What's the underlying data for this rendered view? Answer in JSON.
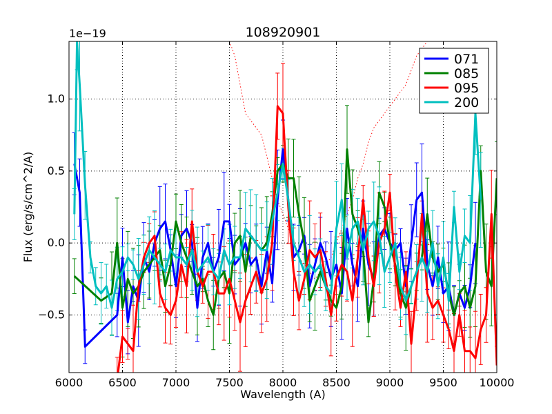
{
  "chart_data": {
    "type": "line",
    "title": "108920901",
    "xlabel": "Wavelength (A)",
    "ylabel": "Flux (erg/s/cm^2/A)",
    "scale_label": "1e−19",
    "xlim": [
      6000,
      10000
    ],
    "ylim": [
      -0.9,
      1.4
    ],
    "xticks": [
      6000,
      6500,
      7000,
      7500,
      8000,
      8500,
      9000,
      9500,
      10000
    ],
    "xtick_labels": [
      "6000",
      "6500",
      "7000",
      "7500",
      "8000",
      "8500",
      "9000",
      "9500",
      "10000"
    ],
    "yticks": [
      -0.5,
      0.0,
      0.5,
      1.0
    ],
    "ytick_labels": [
      "−0.5",
      "0.0",
      "0.5",
      "1.0"
    ],
    "grid": true,
    "legend_position": "top-right",
    "colors": {
      "frame": "#000000",
      "grid": "#000000",
      "dotted": "#ff0000"
    },
    "series": [
      {
        "name": "071",
        "color": "#0000ff",
        "x": [
          6050,
          6100,
          6150,
          6450,
          6500,
          6550,
          6600,
          6650,
          6700,
          6750,
          6800,
          6850,
          6900,
          6950,
          7000,
          7050,
          7100,
          7150,
          7200,
          7250,
          7300,
          7350,
          7400,
          7450,
          7500,
          7550,
          7600,
          7650,
          7700,
          7750,
          7800,
          7850,
          7900,
          7950,
          8000,
          8050,
          8100,
          8150,
          8200,
          8250,
          8300,
          8350,
          8400,
          8450,
          8500,
          8550,
          8600,
          8650,
          8700,
          8750,
          8800,
          8850,
          8900,
          8950,
          9000,
          9050,
          9100,
          9150,
          9200,
          9250,
          9300,
          9350,
          9400,
          9450,
          9500,
          9550,
          9600,
          9650,
          9700,
          9750,
          9800
        ],
        "y": [
          0.55,
          0.35,
          -0.72,
          -0.5,
          -0.1,
          -0.55,
          -0.3,
          -0.4,
          -0.1,
          -0.2,
          0.0,
          0.1,
          0.15,
          -0.05,
          -0.3,
          0.05,
          0.1,
          0.0,
          -0.45,
          -0.1,
          0.0,
          -0.2,
          -0.1,
          0.15,
          0.15,
          -0.15,
          -0.1,
          0.0,
          -0.15,
          -0.1,
          -0.3,
          -0.05,
          -0.28,
          0.3,
          0.65,
          0.3,
          -0.1,
          -0.05,
          0.05,
          -0.3,
          -0.15,
          0.0,
          -0.1,
          -0.25,
          -0.15,
          -0.35,
          0.1,
          -0.15,
          -0.3,
          0.1,
          -0.15,
          -0.25,
          0.05,
          0.1,
          0.0,
          -0.05,
          0.0,
          -0.3,
          0.0,
          0.3,
          0.35,
          -0.15,
          -0.3,
          -0.1,
          -0.35,
          -0.3,
          -0.5,
          -0.35,
          -0.45,
          -0.3,
          0.0
        ]
      },
      {
        "name": "085",
        "color": "#008000",
        "x": [
          6050,
          6300,
          6400,
          6450,
          6500,
          6550,
          6600,
          6650,
          6700,
          6750,
          6800,
          6850,
          6900,
          6950,
          7000,
          7050,
          7100,
          7150,
          7200,
          7250,
          7300,
          7350,
          7400,
          7450,
          7500,
          7550,
          7600,
          7650,
          7700,
          7750,
          7800,
          7850,
          7900,
          7950,
          8000,
          8050,
          8100,
          8150,
          8200,
          8250,
          8300,
          8350,
          8400,
          8450,
          8500,
          8550,
          8600,
          8650,
          8700,
          8750,
          8800,
          8850,
          8900,
          8950,
          9000,
          9050,
          9100,
          9150,
          9200,
          9250,
          9300,
          9350,
          9400,
          9450,
          9500,
          9550,
          9600,
          9650,
          9700,
          9750,
          9800,
          9850,
          9900,
          9950,
          10000
        ],
        "y": [
          -0.23,
          -0.4,
          -0.35,
          0.0,
          -0.45,
          -0.25,
          -0.35,
          -0.3,
          -0.2,
          -0.15,
          -0.1,
          -0.05,
          -0.3,
          -0.15,
          0.15,
          0.0,
          -0.1,
          -0.2,
          -0.3,
          -0.25,
          -0.4,
          -0.5,
          -0.25,
          -0.2,
          -0.35,
          0.0,
          0.05,
          -0.2,
          0.05,
          0.0,
          -0.05,
          0.0,
          0.2,
          0.5,
          0.55,
          0.45,
          0.45,
          0.2,
          0.0,
          -0.4,
          -0.3,
          -0.2,
          -0.3,
          -0.4,
          -0.45,
          -0.3,
          0.65,
          0.2,
          0.1,
          -0.05,
          -0.55,
          -0.25,
          0.35,
          0.25,
          0.0,
          -0.15,
          -0.35,
          -0.45,
          -0.3,
          -0.2,
          -0.1,
          0.2,
          -0.1,
          -0.2,
          -0.15,
          -0.35,
          -0.5,
          -0.35,
          -0.3,
          -0.45,
          -0.3,
          0.5,
          -0.2,
          -0.3,
          0.45
        ]
      },
      {
        "name": "095",
        "color": "#ff0000",
        "x": [
          6450,
          6500,
          6550,
          6600,
          6650,
          6700,
          6750,
          6800,
          6850,
          6900,
          6950,
          7000,
          7050,
          7100,
          7150,
          7200,
          7250,
          7300,
          7350,
          7400,
          7450,
          7500,
          7550,
          7600,
          7650,
          7700,
          7750,
          7800,
          7850,
          7900,
          7950,
          8000,
          8050,
          8100,
          8150,
          8200,
          8250,
          8300,
          8350,
          8400,
          8450,
          8500,
          8550,
          8600,
          8650,
          8700,
          8750,
          8800,
          8850,
          8900,
          8950,
          9000,
          9050,
          9100,
          9150,
          9200,
          9250,
          9300,
          9350,
          9400,
          9450,
          9500,
          9550,
          9600,
          9650,
          9700,
          9750,
          9800,
          9850,
          9900,
          9950,
          10000
        ],
        "y": [
          -0.95,
          -0.65,
          -0.7,
          -0.75,
          -0.3,
          -0.1,
          0.0,
          0.05,
          -0.35,
          -0.45,
          -0.5,
          -0.4,
          -0.15,
          -0.3,
          0.15,
          -0.2,
          -0.3,
          -0.2,
          -0.2,
          -0.35,
          -0.35,
          -0.25,
          -0.4,
          -0.55,
          -0.4,
          -0.3,
          -0.2,
          -0.35,
          -0.25,
          0.0,
          0.95,
          0.9,
          0.25,
          -0.2,
          -0.4,
          -0.25,
          -0.05,
          -0.1,
          -0.05,
          -0.25,
          -0.5,
          -0.25,
          -0.15,
          -0.2,
          -0.4,
          -0.1,
          0.3,
          -0.1,
          -0.3,
          0.0,
          0.1,
          0.35,
          -0.2,
          -0.45,
          -0.2,
          -0.7,
          -0.3,
          0.2,
          -0.35,
          -0.45,
          -0.4,
          -0.5,
          -0.6,
          -0.75,
          -0.5,
          -0.75,
          -0.75,
          -0.8,
          -0.6,
          -0.5,
          0.2,
          -0.85
        ]
      },
      {
        "name": "200",
        "color": "#00bfbf",
        "x": [
          6050,
          6075,
          6100,
          6150,
          6200,
          6250,
          6300,
          6350,
          6400,
          6450,
          6500,
          6550,
          6600,
          6650,
          6700,
          6750,
          6800,
          6850,
          6900,
          6950,
          7000,
          7050,
          7100,
          7150,
          7200,
          7250,
          7300,
          7350,
          7400,
          7450,
          7500,
          7550,
          7600,
          7650,
          7700,
          7750,
          7800,
          7850,
          7900,
          7950,
          8000,
          8050,
          8100,
          8150,
          8200,
          8250,
          8300,
          8350,
          8400,
          8450,
          8500,
          8550,
          8600,
          8650,
          8700,
          8750,
          8800,
          8850,
          8900,
          8950,
          9000,
          9050,
          9100,
          9150,
          9200,
          9250,
          9300,
          9350,
          9400,
          9450,
          9500,
          9550,
          9600,
          9650,
          9700,
          9750,
          9800,
          9850
        ],
        "y": [
          0.2,
          1.4,
          1.1,
          0.4,
          -0.1,
          -0.3,
          -0.35,
          -0.3,
          -0.45,
          -0.25,
          -0.2,
          -0.1,
          -0.15,
          -0.25,
          -0.15,
          -0.05,
          -0.1,
          -0.15,
          -0.2,
          -0.05,
          -0.1,
          -0.1,
          -0.15,
          -0.05,
          -0.2,
          -0.15,
          -0.1,
          -0.2,
          -0.25,
          -0.05,
          -0.15,
          -0.1,
          -0.1,
          0.1,
          0.05,
          0.0,
          -0.05,
          -0.05,
          0.15,
          0.35,
          0.55,
          0.3,
          0.0,
          -0.1,
          -0.2,
          -0.15,
          -0.2,
          -0.15,
          -0.3,
          -0.35,
          0.1,
          0.3,
          -0.1,
          0.1,
          0.15,
          -0.05,
          0.1,
          0.15,
          0.05,
          -0.2,
          -0.1,
          0.0,
          -0.3,
          -0.4,
          -0.3,
          -0.2,
          -0.1,
          -0.2,
          0.0,
          -0.3,
          -0.1,
          -0.4,
          0.25,
          -0.2,
          0.05,
          0.0,
          0.9,
          0.3
        ]
      }
    ],
    "dotted_line": {
      "x": [
        7500,
        7550,
        7600,
        7650,
        7700,
        7750,
        7800,
        7850,
        7900,
        7950,
        8000,
        8050,
        8100,
        8150,
        8200,
        8250,
        8300,
        8350,
        8400,
        8450,
        8500,
        8550,
        8600,
        8650,
        8700,
        8750,
        8800,
        8850,
        8900,
        8950,
        9000,
        9050,
        9100,
        9150,
        9200,
        9250,
        9300,
        9350
      ],
      "y": [
        1.4,
        1.3,
        1.1,
        0.9,
        0.85,
        0.8,
        0.75,
        0.6,
        0.45,
        0.3,
        0.2,
        0.1,
        0.0,
        -0.1,
        -0.15,
        -0.2,
        -0.25,
        -0.2,
        -0.15,
        -0.1,
        0.0,
        0.1,
        0.2,
        0.3,
        0.45,
        0.55,
        0.7,
        0.8,
        0.85,
        0.9,
        0.95,
        1.0,
        1.05,
        1.1,
        1.2,
        1.3,
        1.35,
        1.4
      ]
    }
  }
}
